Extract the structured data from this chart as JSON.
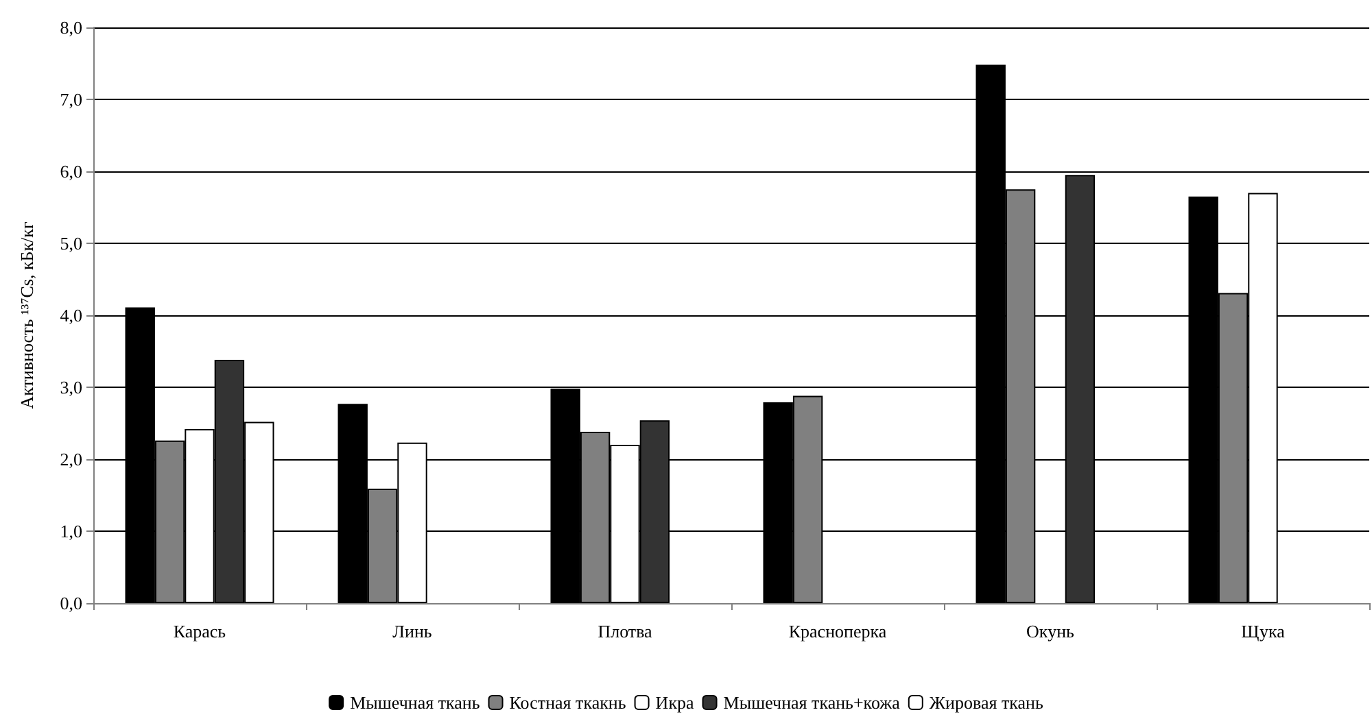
{
  "chart_data": {
    "type": "bar",
    "ylabel": "Активность ¹³⁷Cs, кБк/кг",
    "categories": [
      "Карась",
      "Линь",
      "Плотва",
      "Красноперка",
      "Окунь",
      "Щука"
    ],
    "series": [
      {
        "name": "Мышечная ткань",
        "color": "#000000",
        "values": [
          4.11,
          2.77,
          2.98,
          2.79,
          7.48,
          5.65
        ]
      },
      {
        "name": "Костная ткакнь",
        "color": "#808080",
        "values": [
          2.26,
          1.59,
          2.38,
          2.88,
          5.75,
          4.31
        ]
      },
      {
        "name": "Икра",
        "color": "#ffffff",
        "values": [
          2.42,
          2.23,
          2.2,
          null,
          null,
          5.7
        ]
      },
      {
        "name": "Мышечная ткань+кожа",
        "color": "#333333",
        "values": [
          3.38,
          null,
          2.54,
          null,
          5.95,
          null
        ]
      },
      {
        "name": "Жировая ткань",
        "color": "#ffffff",
        "values": [
          2.52,
          null,
          null,
          null,
          null,
          null
        ]
      }
    ],
    "ylim": [
      0,
      8
    ],
    "yticks": [
      {
        "value": 0,
        "label": "0,0"
      },
      {
        "value": 1,
        "label": "1,0"
      },
      {
        "value": 2,
        "label": "2,0"
      },
      {
        "value": 3,
        "label": "3,0"
      },
      {
        "value": 4,
        "label": "4,0"
      },
      {
        "value": 5,
        "label": "5,0"
      },
      {
        "value": 6,
        "label": "6,0"
      },
      {
        "value": 7,
        "label": "7,0"
      },
      {
        "value": 8,
        "label": "8,0"
      }
    ],
    "grid": "y",
    "legend": "bottom"
  }
}
